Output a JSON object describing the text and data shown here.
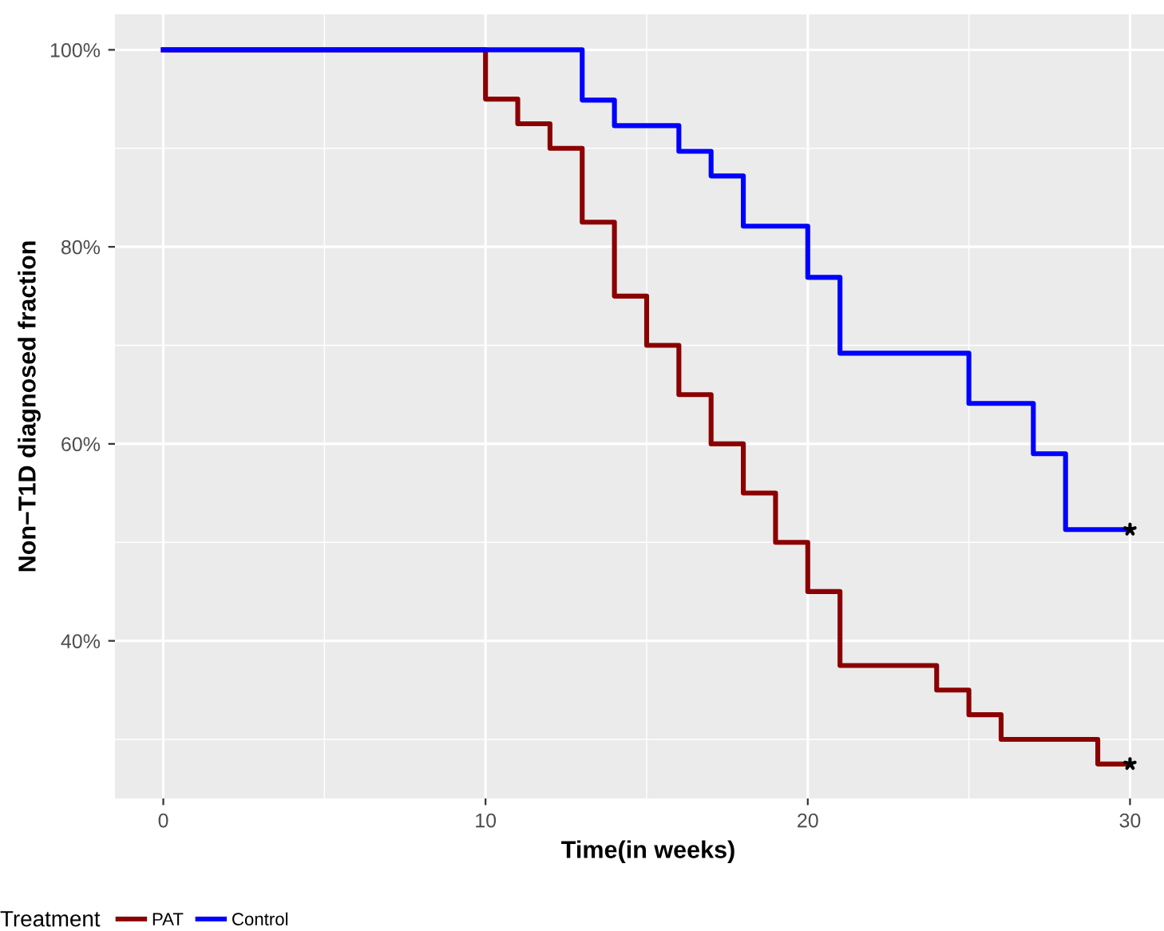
{
  "chart_data": {
    "type": "step",
    "xlabel": "Time(in weeks)",
    "ylabel": "Non−T1D diagnosed fraction",
    "legend_title": "Treatment",
    "series": [
      {
        "name": "PAT",
        "color": "#8b0000",
        "x": [
          0,
          10,
          11,
          12,
          13,
          14,
          15,
          16,
          17,
          18,
          19,
          20,
          21,
          24,
          25,
          26,
          29,
          30
        ],
        "values": [
          100,
          95,
          92.5,
          90,
          82.5,
          75,
          70,
          65,
          60,
          55,
          50,
          45,
          37.5,
          35,
          32.5,
          30,
          27.5,
          27.5
        ]
      },
      {
        "name": "Control",
        "color": "#0000ff",
        "x": [
          0,
          13,
          14,
          16,
          17,
          18,
          20,
          21,
          25,
          27,
          28,
          30
        ],
        "values": [
          100,
          94.9,
          92.3,
          89.7,
          87.2,
          82.1,
          76.9,
          69.2,
          64.1,
          59.0,
          51.3,
          51.3
        ]
      },
      {
        "type": "scatter",
        "marker": "star",
        "color": "#000000",
        "x": [
          30,
          30
        ],
        "values": [
          51.3,
          27.5
        ]
      }
    ],
    "xlim": [
      -1.5,
      31.6
    ],
    "ylim": [
      24,
      103.6
    ],
    "xticks": [
      0,
      {
        "value": 5,
        "label": null
      },
      10,
      {
        "value": 15,
        "label": null
      },
      20,
      {
        "value": 25,
        "label": null
      },
      30
    ],
    "yticks": [
      {
        "value": 30,
        "label": null
      },
      {
        "value": 40,
        "label": "40%"
      },
      {
        "value": 50,
        "label": null
      },
      {
        "value": 60,
        "label": "60%"
      },
      {
        "value": 70,
        "label": null
      },
      {
        "value": 80,
        "label": "80%"
      },
      {
        "value": 90,
        "label": null
      },
      {
        "value": 100,
        "label": "100%"
      }
    ],
    "grid": true,
    "legend": "bottom"
  }
}
